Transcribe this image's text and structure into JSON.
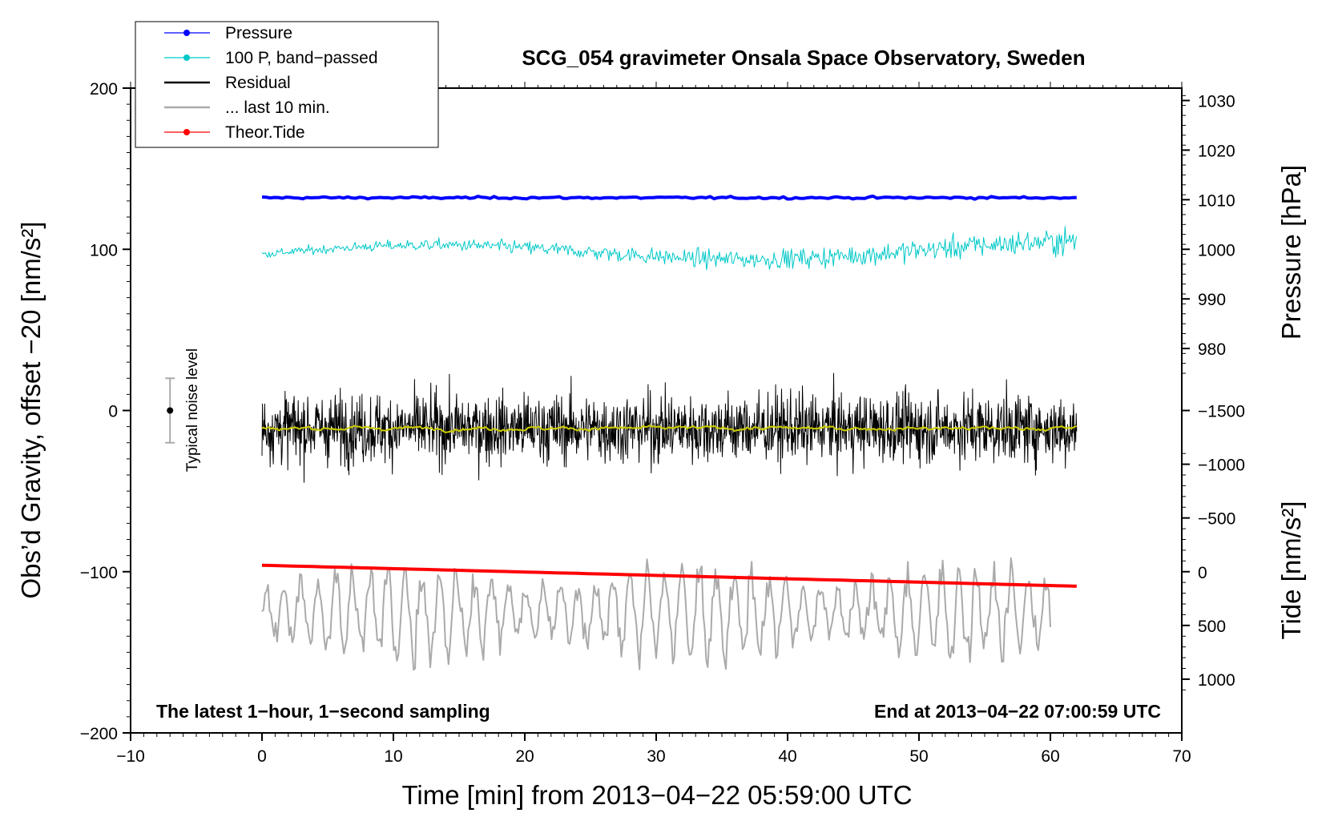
{
  "chart_data": {
    "type": "line",
    "title": "SCG_054 gravimeter Onsala Space Observatory, Sweden",
    "xlabel": "Time [min] from 2013−04−22 05:59:00 UTC",
    "ylabel_left": "Obs’d Gravity, offset −20 [nm/s²]",
    "ylabel_right_top": "Pressure [hPa]",
    "ylabel_right_bottom": "Tide [nm/s²]",
    "xlim": [
      -10,
      70
    ],
    "ylim_left": [
      -200,
      200
    ],
    "xticks": [
      -10,
      0,
      10,
      20,
      30,
      40,
      50,
      60,
      70
    ],
    "xtick_labels": [
      "−10",
      "0",
      "10",
      "20",
      "30",
      "40",
      "50",
      "60",
      "70"
    ],
    "yticks_left": [
      200,
      100,
      0,
      -100,
      -200
    ],
    "ytick_labels_left": [
      "200",
      "100",
      "0",
      "−100",
      "−200"
    ],
    "pressure_axis": {
      "ticks": [
        1030,
        1020,
        1010,
        1000,
        990,
        980
      ],
      "tick_labels": [
        "1030",
        "1020",
        "1010",
        "1000",
        "990",
        "980"
      ]
    },
    "tide_axis": {
      "ticks": [
        1000,
        500,
        0,
        -500,
        -1000,
        -1500
      ],
      "tick_labels": [
        "1000",
        "500",
        "0",
        "−500",
        "−1000",
        "−1500"
      ]
    },
    "footer_left": "The latest 1−hour, 1−second sampling",
    "footer_right": "End at 2013−04−22 07:00:59 UTC",
    "noise_indicator": {
      "label": "Typical noise level",
      "x": -7,
      "center": 0,
      "range": [
        -20,
        20
      ]
    },
    "legend": [
      {
        "label": "Pressure",
        "color": "#0000ff",
        "marker": true
      },
      {
        "label": "100 P, band−passed",
        "color": "#00c8c8",
        "marker": true
      },
      {
        "label": "Residual",
        "color": "#000000",
        "marker": false
      },
      {
        "label": "... last 10 min.",
        "color": "#aaaaaa",
        "marker": false
      },
      {
        "label": "Theor.Tide",
        "color": "#ff0000",
        "marker": true
      }
    ],
    "series": [
      {
        "name": "Pressure",
        "color": "#0000ff",
        "axis": "left",
        "x_range": [
          0,
          62
        ],
        "level_start": 132,
        "level_end": 132,
        "noise": 0.6
      },
      {
        "name": "100 P, band−passed",
        "color": "#00c8c8",
        "axis": "left",
        "x_range": [
          0,
          62
        ],
        "level_start": 97,
        "level_end": 100,
        "noise": 4
      },
      {
        "name": "Residual",
        "color": "#000000",
        "axis": "left",
        "x_range": [
          0,
          62
        ],
        "level_start": -11,
        "level_end": -11,
        "noise": 18
      },
      {
        "name": "Residual smoothed",
        "color": "#cccc00",
        "axis": "left",
        "x_range": [
          0,
          62
        ],
        "level_start": -11,
        "level_end": -11,
        "noise": 1.5
      },
      {
        "name": "... last 10 min.",
        "color": "#aaaaaa",
        "axis": "left",
        "x_range": [
          0,
          60
        ],
        "level_start": -125,
        "level_end": -125,
        "noise": 15
      },
      {
        "name": "Theor.Tide",
        "color": "#ff0000",
        "axis": "left",
        "x_range": [
          0,
          62
        ],
        "level_start": -96,
        "level_end": -109,
        "noise": 0
      }
    ]
  }
}
